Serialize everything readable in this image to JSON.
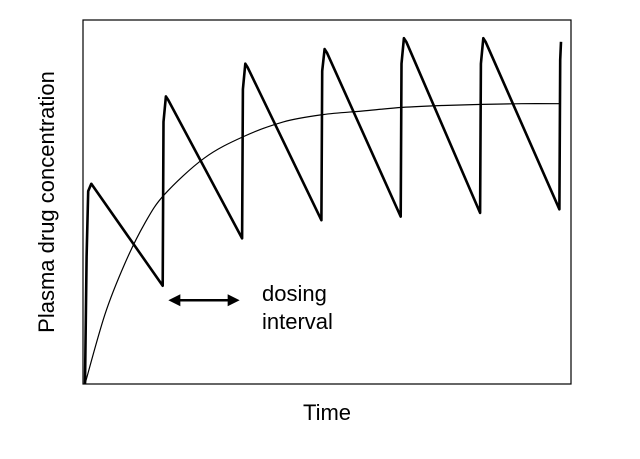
{
  "chart_data": {
    "type": "line",
    "xlabel": "Time",
    "ylabel": "Plasma drug concentration",
    "ticks_shown": false,
    "grid": false,
    "xlim": [
      0,
      6
    ],
    "ylim": [
      0,
      1
    ],
    "series": [
      {
        "style": "thick",
        "x": [
          0,
          0.02,
          0.04,
          0.08,
          0.98,
          0.99,
          1.02,
          1.05,
          1.98,
          1.99,
          2.02,
          2.05,
          2.98,
          2.99,
          3.02,
          3.05,
          3.98,
          3.99,
          4.02,
          4.05,
          4.98,
          4.99,
          5.02,
          5.05,
          5.98,
          5.99,
          6.0
        ],
        "y": [
          0,
          0.35,
          0.53,
          0.55,
          0.27,
          0.72,
          0.79,
          0.78,
          0.4,
          0.81,
          0.88,
          0.87,
          0.45,
          0.86,
          0.92,
          0.91,
          0.46,
          0.88,
          0.95,
          0.94,
          0.47,
          0.88,
          0.95,
          0.94,
          0.48,
          0.89,
          0.94
        ]
      },
      {
        "style": "thin",
        "x": [
          0,
          0.25,
          0.5,
          0.75,
          1,
          1.5,
          2,
          2.5,
          3,
          3.5,
          4,
          4.5,
          5,
          5.5,
          6
        ],
        "y": [
          0,
          0.19,
          0.33,
          0.44,
          0.52,
          0.62,
          0.68,
          0.72,
          0.74,
          0.75,
          0.76,
          0.765,
          0.768,
          0.77,
          0.77
        ]
      }
    ],
    "annotation": {
      "text_lines": [
        "dosing",
        "interval"
      ],
      "arrow_from_x": 1.0,
      "arrow_to_x": 2.0,
      "arrow_y": 0.23
    }
  }
}
